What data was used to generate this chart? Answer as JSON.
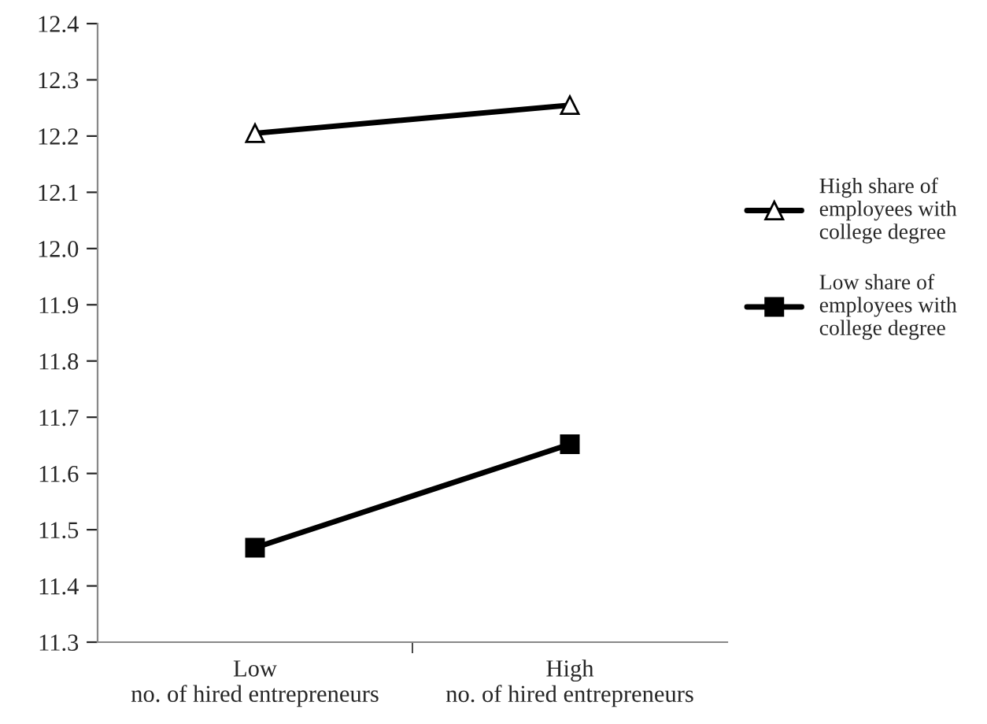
{
  "chart_data": {
    "type": "line",
    "categories": [
      "Low\nno. of hired entrepreneurs",
      "High\nno. of hired entrepreneurs"
    ],
    "series": [
      {
        "name": "High share of\nemployees with\ncollege degree",
        "color": "#000000",
        "marker": "triangle",
        "values": [
          12.205,
          12.255
        ]
      },
      {
        "name": "Low share of\nemployees with\ncollege degree",
        "color": "#000000",
        "marker": "square",
        "values": [
          11.468,
          11.652
        ]
      }
    ],
    "ylim": [
      11.3,
      12.4
    ],
    "yticks": [
      11.3,
      11.4,
      11.5,
      11.6,
      11.7,
      11.8,
      11.9,
      {
        "value": 12.0,
        "label": "12.0"
      },
      12.1,
      12.2,
      12.3,
      12.4
    ],
    "grid": false,
    "legend": "right",
    "line_style": "solid"
  }
}
